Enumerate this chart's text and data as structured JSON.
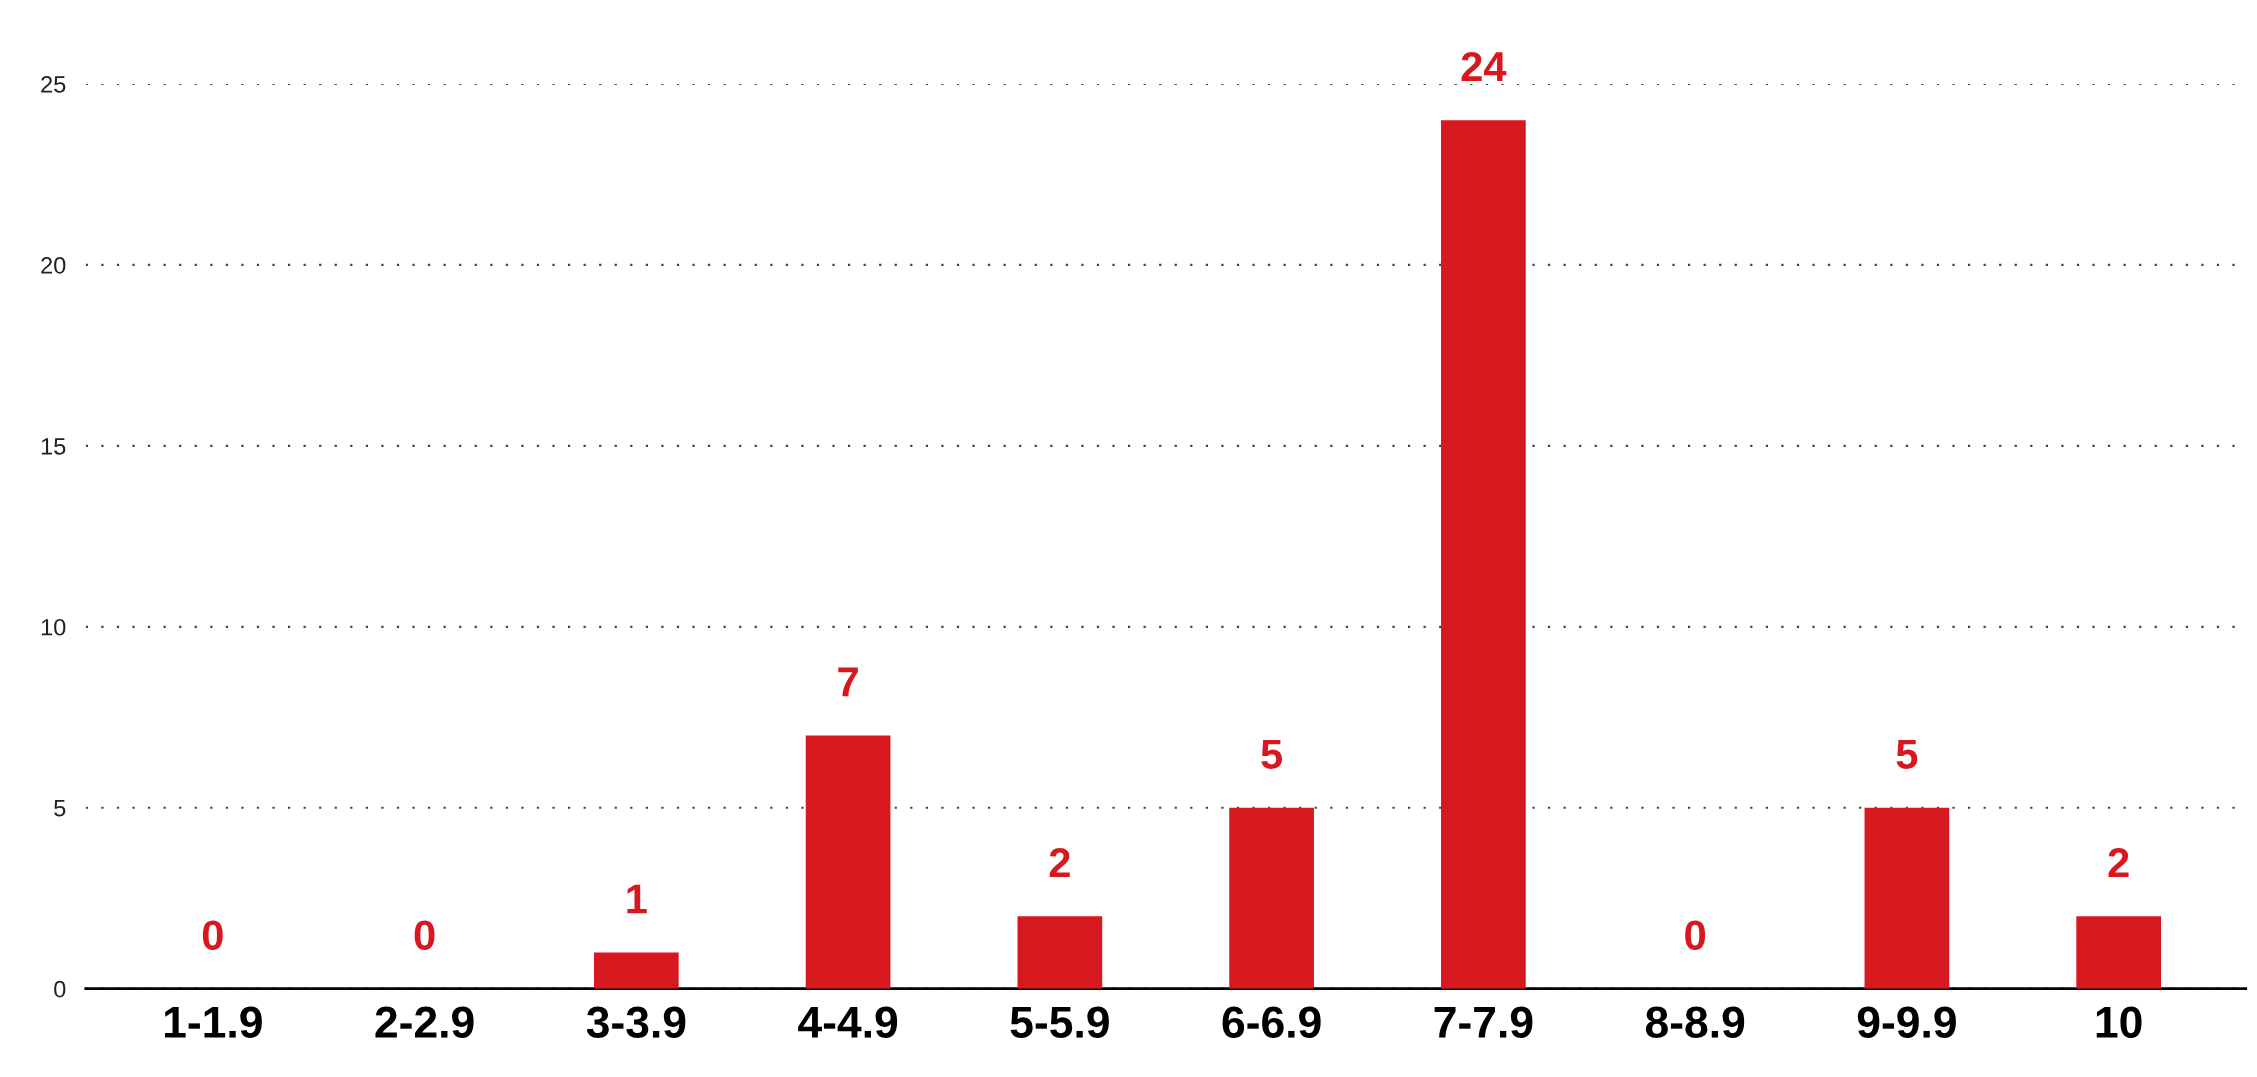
{
  "chart_data": {
    "type": "bar",
    "categories": [
      "1-1.9",
      "2-2.9",
      "3-3.9",
      "4-4.9",
      "5-5.9",
      "6-6.9",
      "7-7.9",
      "8-8.9",
      "9-9.9",
      "10"
    ],
    "values": [
      0,
      0,
      1,
      7,
      2,
      5,
      24,
      0,
      5,
      2
    ],
    "color": "#d7191f",
    "ylim": [
      0,
      25
    ],
    "yticks": [
      0,
      5,
      10,
      15,
      20,
      25
    ],
    "grid": "y",
    "data_labels": true
  }
}
